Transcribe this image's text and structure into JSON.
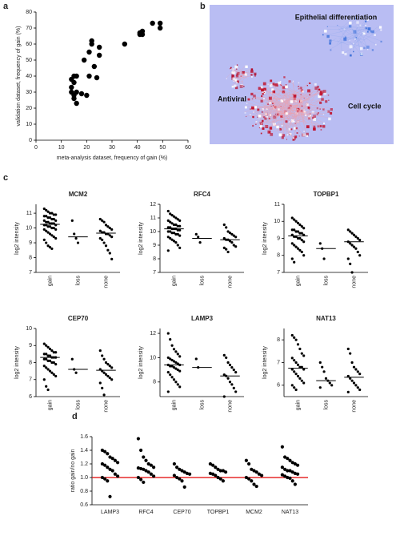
{
  "panel_labels": [
    "a",
    "b",
    "c",
    "d"
  ],
  "network": {
    "labels": [
      "Epithelial differentiation",
      "Antiviral",
      "Cell cycle"
    ]
  },
  "chart_data": [
    {
      "type": "scatter",
      "x_label": "meta-analysis dataset, frequency of gain (%)",
      "y_label": "validation dataset, frequency of gain (%)",
      "x": [
        14,
        14,
        14,
        15,
        15,
        15,
        15,
        16,
        16,
        16,
        18,
        19,
        20,
        21,
        21,
        22,
        22,
        23,
        24,
        25,
        25,
        35,
        41,
        41,
        42,
        42,
        46,
        49,
        49
      ],
      "values": [
        30,
        33,
        38,
        36,
        40,
        28,
        26,
        23,
        30,
        40,
        29,
        50,
        28,
        40,
        55,
        60,
        62,
        46,
        39,
        53,
        58,
        60,
        66,
        67,
        68,
        66,
        73,
        73,
        70
      ],
      "color": "#000000",
      "xlim": [
        0,
        60
      ],
      "xticks": [
        0,
        10,
        20,
        30,
        40,
        50,
        60
      ],
      "ylim": [
        0,
        80
      ],
      "yticks": [
        0,
        10,
        20,
        30,
        40,
        50,
        60,
        70,
        80
      ]
    },
    {
      "type": "strip",
      "title": "MCM2",
      "y_label": "log2 intensity",
      "ylim": [
        7,
        11.6
      ],
      "yticks": [
        7,
        8,
        9,
        10,
        11
      ],
      "color": "#000000",
      "groups": [
        {
          "name": "gain",
          "median": 10.25,
          "values": [
            11.3,
            11.2,
            11.1,
            11.0,
            11.0,
            10.9,
            10.9,
            10.8,
            10.8,
            10.7,
            10.7,
            10.6,
            10.6,
            10.5,
            10.5,
            10.4,
            10.4,
            10.3,
            10.3,
            10.3,
            10.2,
            10.2,
            10.2,
            10.1,
            10.1,
            10.0,
            10.0,
            9.9,
            9.9,
            9.8,
            9.7,
            9.6,
            9.5,
            9.4,
            9.3,
            9.2,
            9.0,
            8.8,
            8.7,
            8.6
          ]
        },
        {
          "name": "loss",
          "median": 9.4,
          "values": [
            10.5,
            9.6,
            9.3,
            9.0
          ]
        },
        {
          "name": "none",
          "median": 9.65,
          "values": [
            10.6,
            10.5,
            10.4,
            10.2,
            10.1,
            10.0,
            9.9,
            9.8,
            9.7,
            9.7,
            9.6,
            9.6,
            9.5,
            9.4,
            9.3,
            9.2,
            9.0,
            8.8,
            8.5,
            8.3,
            7.9
          ]
        }
      ]
    },
    {
      "type": "strip",
      "title": "RFC4",
      "y_label": "log2 intensity",
      "ylim": [
        7,
        12
      ],
      "yticks": [
        7,
        8,
        9,
        10,
        11,
        12
      ],
      "color": "#000000",
      "groups": [
        {
          "name": "gain",
          "median": 10.2,
          "values": [
            11.5,
            11.3,
            11.2,
            11.1,
            11.0,
            10.9,
            10.8,
            10.8,
            10.7,
            10.6,
            10.5,
            10.5,
            10.4,
            10.4,
            10.3,
            10.3,
            10.2,
            10.2,
            10.2,
            10.1,
            10.1,
            10.0,
            10.0,
            9.9,
            9.9,
            9.8,
            9.8,
            9.7,
            9.6,
            9.5,
            9.4,
            9.3,
            9.2,
            9.0,
            8.8,
            8.6
          ]
        },
        {
          "name": "loss",
          "median": 9.5,
          "values": [
            9.8,
            9.6,
            9.2
          ]
        },
        {
          "name": "none",
          "median": 9.4,
          "values": [
            10.5,
            10.3,
            10.0,
            9.9,
            9.8,
            9.7,
            9.6,
            9.5,
            9.4,
            9.4,
            9.3,
            9.2,
            9.0,
            8.9,
            8.8,
            8.7,
            8.5
          ]
        }
      ]
    },
    {
      "type": "strip",
      "title": "TOPBP1",
      "y_label": "log2 intensity",
      "ylim": [
        7,
        11
      ],
      "yticks": [
        7,
        8,
        9,
        10,
        11
      ],
      "color": "#000000",
      "groups": [
        {
          "name": "gain",
          "median": 9.15,
          "values": [
            10.2,
            10.1,
            10.0,
            9.9,
            9.8,
            9.7,
            9.6,
            9.5,
            9.5,
            9.4,
            9.4,
            9.3,
            9.3,
            9.2,
            9.2,
            9.1,
            9.1,
            9.0,
            9.0,
            8.9,
            8.8,
            8.7,
            8.6,
            8.5,
            8.4,
            8.3,
            8.2,
            8.0,
            7.8,
            7.6
          ]
        },
        {
          "name": "loss",
          "median": 8.4,
          "values": [
            8.7,
            8.4,
            7.8
          ]
        },
        {
          "name": "none",
          "median": 8.8,
          "values": [
            9.5,
            9.4,
            9.3,
            9.2,
            9.1,
            9.0,
            8.9,
            8.8,
            8.7,
            8.6,
            8.5,
            8.4,
            8.2,
            8.0,
            7.8,
            7.5,
            7.0
          ]
        }
      ]
    },
    {
      "type": "strip",
      "title": "CEP70",
      "y_label": "log2 intensity",
      "ylim": [
        6,
        10
      ],
      "yticks": [
        6,
        7,
        8,
        9,
        10
      ],
      "color": "#000000",
      "groups": [
        {
          "name": "gain",
          "median": 8.3,
          "values": [
            9.1,
            9.0,
            8.9,
            8.8,
            8.7,
            8.6,
            8.6,
            8.5,
            8.5,
            8.4,
            8.4,
            8.3,
            8.3,
            8.3,
            8.2,
            8.2,
            8.1,
            8.1,
            8.0,
            8.0,
            7.9,
            7.8,
            7.7,
            7.6,
            7.5,
            7.4,
            7.3,
            7.2,
            7.0,
            6.6,
            6.4
          ]
        },
        {
          "name": "loss",
          "median": 7.6,
          "values": [
            8.2,
            7.6,
            7.4
          ]
        },
        {
          "name": "none",
          "median": 7.55,
          "values": [
            8.7,
            8.4,
            8.2,
            8.0,
            7.9,
            7.8,
            7.7,
            7.6,
            7.5,
            7.4,
            7.3,
            7.2,
            7.1,
            7.0,
            6.8,
            6.5,
            6.1
          ]
        }
      ]
    },
    {
      "type": "strip",
      "title": "LAMP3",
      "y_label": "log2 intensity",
      "ylim": [
        6.8,
        12.4
      ],
      "yticks": [
        8,
        10,
        12
      ],
      "color": "#000000",
      "groups": [
        {
          "name": "gain",
          "median": 9.4,
          "values": [
            12.0,
            11.5,
            11.0,
            10.7,
            10.5,
            10.3,
            10.1,
            10.0,
            9.9,
            9.8,
            9.7,
            9.6,
            9.5,
            9.4,
            9.4,
            9.3,
            9.3,
            9.2,
            9.1,
            9.0,
            8.9,
            8.8,
            8.6,
            8.4,
            8.2,
            8.0,
            7.8,
            7.6,
            7.2
          ]
        },
        {
          "name": "loss",
          "median": 9.2,
          "values": [
            9.9,
            9.2
          ]
        },
        {
          "name": "none",
          "median": 8.5,
          "values": [
            10.2,
            10.0,
            9.6,
            9.4,
            9.2,
            9.0,
            8.8,
            8.6,
            8.5,
            8.3,
            8.0,
            7.8,
            7.5,
            7.2,
            6.8
          ]
        }
      ]
    },
    {
      "type": "strip",
      "title": "NAT13",
      "y_label": "log2 intensity",
      "ylim": [
        5.5,
        8.5
      ],
      "yticks": [
        6,
        7,
        8
      ],
      "color": "#000000",
      "groups": [
        {
          "name": "gain",
          "median": 6.75,
          "values": [
            8.2,
            8.1,
            8.0,
            7.8,
            7.6,
            7.4,
            7.3,
            7.2,
            7.1,
            7.0,
            6.9,
            6.8,
            6.8,
            6.7,
            6.7,
            6.6,
            6.5,
            6.4,
            6.3,
            6.2,
            6.1,
            6.0,
            5.9,
            5.8
          ]
        },
        {
          "name": "loss",
          "median": 6.2,
          "values": [
            7.0,
            6.8,
            6.6,
            6.3,
            6.2,
            6.1,
            6.0,
            5.9
          ]
        },
        {
          "name": "none",
          "median": 6.35,
          "values": [
            7.6,
            7.4,
            7.0,
            6.8,
            6.7,
            6.6,
            6.5,
            6.4,
            6.3,
            6.2,
            6.1,
            6.0,
            5.9,
            5.8,
            5.7
          ]
        }
      ]
    },
    {
      "type": "strip",
      "y_label": "ratio gain/no gain",
      "ylim": [
        0.6,
        1.6
      ],
      "yticks": [
        0.6,
        0.8,
        {
          "value": 1,
          "label": "1.0"
        },
        1.2,
        1.4,
        1.6
      ],
      "color": "#000000",
      "refline": {
        "value": 1,
        "color": "#e00000"
      },
      "groups": [
        {
          "name": "LAMP3",
          "values": [
            1.4,
            1.38,
            1.35,
            1.3,
            1.28,
            1.25,
            1.22,
            1.2,
            1.18,
            1.15,
            1.12,
            1.1,
            1.05,
            1.02,
            1.0,
            0.98,
            0.95,
            0.72
          ]
        },
        {
          "name": "RFC4",
          "values": [
            1.57,
            1.4,
            1.3,
            1.25,
            1.2,
            1.18,
            1.15,
            1.14,
            1.13,
            1.12,
            1.1,
            1.08,
            1.05,
            1.02,
            1.0,
            0.97,
            0.93
          ]
        },
        {
          "name": "CEP70",
          "values": [
            1.2,
            1.15,
            1.12,
            1.1,
            1.08,
            1.06,
            1.05,
            1.03,
            1.0,
            0.98,
            0.95,
            0.86
          ]
        },
        {
          "name": "TOPBP1",
          "values": [
            1.2,
            1.18,
            1.15,
            1.12,
            1.1,
            1.1,
            1.08,
            1.06,
            1.05,
            1.03,
            1.0,
            0.98,
            0.95
          ]
        },
        {
          "name": "MCM2",
          "values": [
            1.25,
            1.2,
            1.12,
            1.1,
            1.08,
            1.05,
            1.03,
            1.0,
            0.98,
            0.95,
            0.9,
            0.87
          ]
        },
        {
          "name": "NAT13",
          "values": [
            1.45,
            1.3,
            1.28,
            1.25,
            1.22,
            1.2,
            1.18,
            1.15,
            1.12,
            1.1,
            1.1,
            1.08,
            1.06,
            1.05,
            1.04,
            1.02,
            1.0,
            0.99,
            0.95,
            0.9
          ]
        }
      ]
    }
  ]
}
